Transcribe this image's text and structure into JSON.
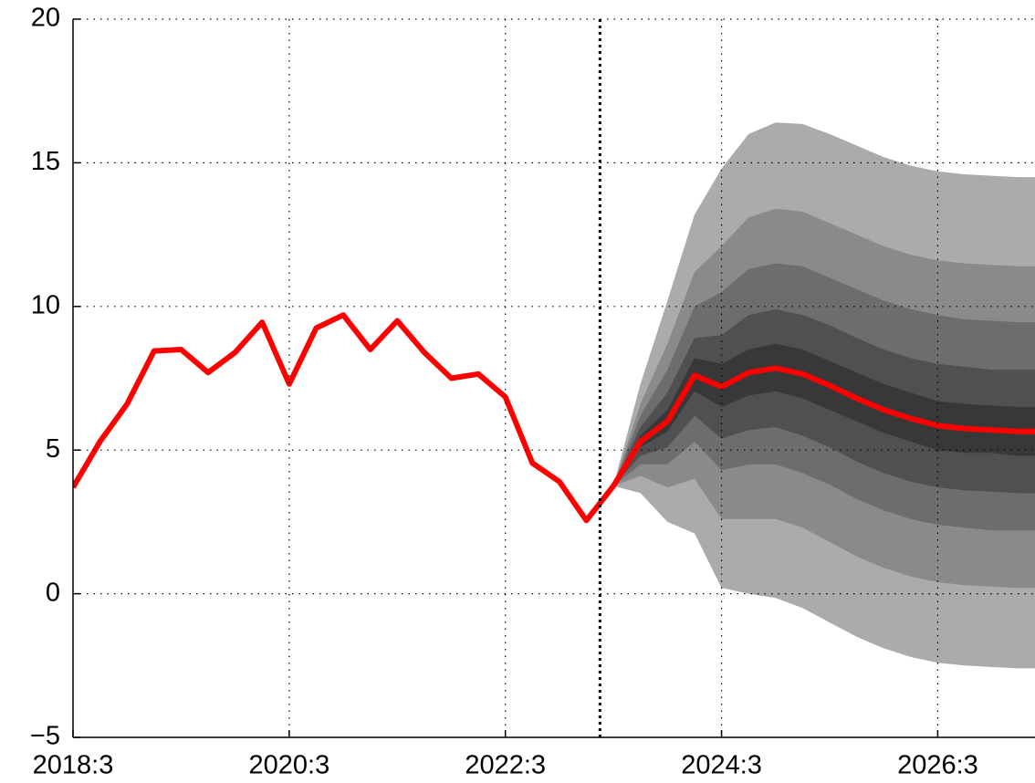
{
  "chart_data": {
    "type": "fan",
    "x": [
      2018.5,
      2018.75,
      2019,
      2019.25,
      2019.5,
      2019.75,
      2020,
      2020.25,
      2020.5,
      2020.75,
      2021,
      2021.25,
      2021.5,
      2021.75,
      2022,
      2022.25,
      2022.5,
      2022.75,
      2023,
      2023.25,
      2023.5,
      2023.75,
      2024,
      2024.25,
      2024.5,
      2024.75,
      2025,
      2025.25,
      2025.5,
      2025.75,
      2026,
      2026.25,
      2026.5,
      2026.75,
      2027,
      2027.25,
      2027.5
    ],
    "series": [
      {
        "color": "#ff0000",
        "values": [
          3.7,
          5.3,
          6.6,
          8.45,
          8.5,
          7.7,
          8.4,
          9.45,
          7.3,
          9.25,
          9.7,
          8.5,
          9.5,
          8.4,
          7.5,
          7.65,
          6.85,
          4.55,
          3.9,
          2.55,
          3.75,
          5.3,
          6.0,
          7.6,
          7.2,
          7.7,
          7.85,
          7.65,
          7.25,
          6.8,
          6.4,
          6.1,
          5.85,
          5.75,
          5.7,
          5.65,
          5.65
        ]
      }
    ],
    "band_x": [
      2023.5,
      2023.75,
      2024,
      2024.25,
      2024.5,
      2024.75,
      2025,
      2025.25,
      2025.5,
      2025.75,
      2026,
      2026.25,
      2026.5,
      2026.75,
      2027,
      2027.25,
      2027.5
    ],
    "bands": [
      {
        "color": "#ababab",
        "upper": [
          3.75,
          7.3,
          10.2,
          13.2,
          14.8,
          16.0,
          16.4,
          16.35,
          16.0,
          15.6,
          15.2,
          14.9,
          14.7,
          14.6,
          14.55,
          14.5,
          14.5
        ],
        "lower": [
          3.75,
          3.5,
          2.5,
          2.1,
          0.2,
          0.0,
          -0.15,
          -0.5,
          -1.0,
          -1.5,
          -1.9,
          -2.2,
          -2.4,
          -2.5,
          -2.55,
          -2.6,
          -2.6
        ]
      },
      {
        "color": "#8a8a8a",
        "upper": [
          3.75,
          6.6,
          8.7,
          11.2,
          12.1,
          13.1,
          13.4,
          13.3,
          12.9,
          12.5,
          12.1,
          11.8,
          11.6,
          11.5,
          11.45,
          11.4,
          11.4
        ],
        "lower": [
          3.75,
          4.1,
          3.7,
          4.0,
          2.6,
          2.6,
          2.6,
          2.3,
          1.8,
          1.3,
          0.9,
          0.6,
          0.4,
          0.3,
          0.25,
          0.2,
          0.2
        ]
      },
      {
        "color": "#6d6d6d",
        "upper": [
          3.75,
          6.2,
          7.8,
          10.0,
          10.5,
          11.3,
          11.5,
          11.4,
          11.0,
          10.6,
          10.2,
          9.9,
          9.7,
          9.55,
          9.5,
          9.45,
          9.45
        ],
        "lower": [
          3.75,
          4.5,
          4.5,
          5.3,
          4.3,
          4.5,
          4.5,
          4.2,
          3.8,
          3.3,
          2.9,
          2.6,
          2.4,
          2.3,
          2.2,
          2.2,
          2.2
        ]
      },
      {
        "color": "#505050",
        "upper": [
          3.75,
          5.8,
          7.0,
          8.9,
          9.0,
          9.7,
          9.9,
          9.7,
          9.35,
          8.9,
          8.5,
          8.2,
          8.0,
          7.9,
          7.8,
          7.8,
          7.8
        ],
        "lower": [
          3.75,
          4.8,
          5.1,
          6.2,
          5.4,
          5.7,
          5.8,
          5.5,
          5.1,
          4.6,
          4.2,
          3.9,
          3.7,
          3.6,
          3.55,
          3.5,
          3.5
        ]
      },
      {
        "color": "#383838",
        "upper": [
          3.75,
          5.5,
          6.4,
          8.2,
          8.0,
          8.5,
          8.7,
          8.5,
          8.1,
          7.7,
          7.3,
          7.0,
          6.7,
          6.6,
          6.55,
          6.5,
          6.5
        ],
        "lower": [
          3.75,
          5.1,
          5.65,
          7.05,
          6.5,
          6.9,
          7.05,
          6.8,
          6.4,
          6.0,
          5.6,
          5.3,
          5.0,
          4.9,
          4.9,
          4.8,
          4.8
        ]
      }
    ],
    "forecast_start": 2023.375,
    "xlim": [
      2018.5,
      2027.4
    ],
    "xticks": [
      {
        "value": 2018.5,
        "label": "2018:3"
      },
      {
        "value": 2020.5,
        "label": "2020:3"
      },
      {
        "value": 2022.5,
        "label": "2022:3"
      },
      {
        "value": 2024.5,
        "label": "2024:3"
      },
      {
        "value": 2026.5,
        "label": "2026:3"
      }
    ],
    "ylim": [
      -5,
      20
    ],
    "yticks": [
      {
        "value": -5,
        "label": "−5"
      },
      0,
      5,
      10,
      15,
      20
    ],
    "grid": true
  }
}
